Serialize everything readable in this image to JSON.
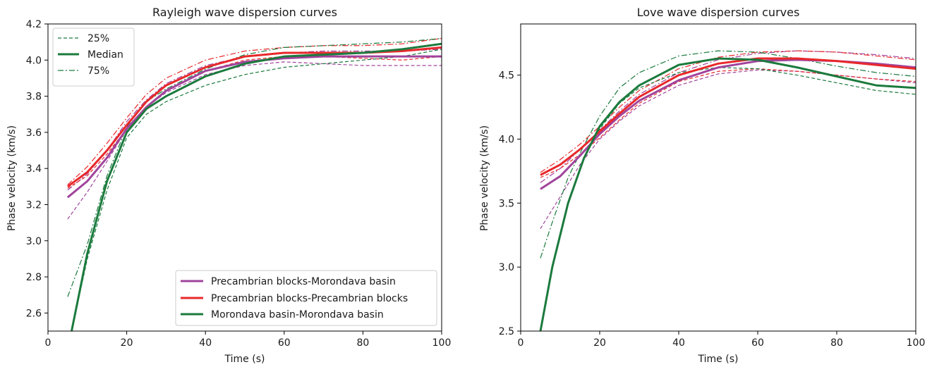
{
  "figure": {
    "style": {
      "colors": {
        "pm": "#a0449c",
        "pp": "#e8282b",
        "mm": "#1b7a3d"
      }
    }
  },
  "chart_data": [
    {
      "type": "line",
      "title": "Rayleigh wave dispersion curves",
      "xlabel": "Time (s)",
      "ylabel": "Phase velocity (km/s)",
      "xlim": [
        0,
        100
      ],
      "ylim": [
        2.5,
        4.2
      ],
      "xticks": [
        0,
        20,
        40,
        60,
        80,
        100
      ],
      "yticks": [
        2.6,
        2.8,
        3.0,
        3.2,
        3.4,
        3.6,
        3.8,
        4.0,
        4.2
      ],
      "ytick_labels": [
        "2.6",
        "2.8",
        "3.0",
        "3.2",
        "3.4",
        "3.6",
        "3.8",
        "4.0",
        "4.2"
      ],
      "grid": false,
      "legend_style": {
        "position": "upper-left",
        "entries": [
          "25%",
          "Median",
          "75%"
        ]
      },
      "legend_group": {
        "position": "lower-right",
        "entries": [
          "Precambrian blocks-Morondava basin",
          "Precambrian blocks-Precambrian blocks",
          "Morondava basin-Morondava basin"
        ]
      },
      "series": [
        {
          "name": "Precambrian blocks-Morondava basin",
          "group": "pm",
          "stat": "median",
          "x": [
            5,
            10,
            15,
            20,
            25,
            30,
            40,
            50,
            60,
            70,
            80,
            90,
            100
          ],
          "y": [
            3.24,
            3.33,
            3.46,
            3.62,
            3.74,
            3.83,
            3.94,
            3.99,
            4.01,
            4.02,
            4.02,
            4.02,
            4.02
          ]
        },
        {
          "name": "Precambrian blocks-Morondava basin",
          "group": "pm",
          "stat": "25%",
          "x": [
            5,
            10,
            15,
            20,
            25,
            30,
            40,
            50,
            60,
            70,
            80,
            90,
            100
          ],
          "y": [
            3.12,
            3.27,
            3.44,
            3.62,
            3.74,
            3.82,
            3.92,
            3.97,
            3.99,
            3.98,
            3.97,
            3.97,
            3.97
          ]
        },
        {
          "name": "Precambrian blocks-Morondava basin",
          "group": "pm",
          "stat": "75%",
          "x": [
            5,
            10,
            15,
            20,
            25,
            30,
            40,
            50,
            60,
            70,
            80,
            90,
            100
          ],
          "y": [
            3.28,
            3.37,
            3.5,
            3.66,
            3.78,
            3.87,
            3.97,
            4.02,
            4.04,
            4.05,
            4.05,
            4.05,
            4.06
          ]
        },
        {
          "name": "Precambrian blocks-Precambrian blocks",
          "group": "pp",
          "stat": "median",
          "x": [
            5,
            10,
            15,
            20,
            25,
            30,
            40,
            50,
            60,
            70,
            80,
            90,
            100
          ],
          "y": [
            3.3,
            3.38,
            3.5,
            3.64,
            3.77,
            3.86,
            3.96,
            4.02,
            4.04,
            4.04,
            4.04,
            4.05,
            4.07
          ]
        },
        {
          "name": "Precambrian blocks-Precambrian blocks",
          "group": "pp",
          "stat": "25%",
          "x": [
            5,
            10,
            15,
            20,
            25,
            30,
            40,
            50,
            60,
            70,
            80,
            90,
            100
          ],
          "y": [
            3.29,
            3.36,
            3.48,
            3.62,
            3.74,
            3.83,
            3.94,
            4.0,
            4.02,
            4.02,
            4.01,
            4.0,
            4.02
          ]
        },
        {
          "name": "Precambrian blocks-Precambrian blocks",
          "group": "pp",
          "stat": "75%",
          "x": [
            5,
            10,
            15,
            20,
            25,
            30,
            40,
            50,
            60,
            70,
            80,
            90,
            100
          ],
          "y": [
            3.31,
            3.41,
            3.54,
            3.68,
            3.81,
            3.9,
            4.0,
            4.05,
            4.07,
            4.08,
            4.08,
            4.09,
            4.12
          ]
        },
        {
          "name": "Morondava basin-Morondava basin",
          "group": "mm",
          "stat": "median",
          "x": [
            6,
            10,
            15,
            20,
            25,
            30,
            40,
            50,
            60,
            70,
            80,
            90,
            100
          ],
          "y": [
            2.5,
            2.93,
            3.33,
            3.6,
            3.73,
            3.8,
            3.91,
            3.98,
            4.02,
            4.03,
            4.04,
            4.06,
            4.09
          ]
        },
        {
          "name": "Morondava basin-Morondava basin",
          "group": "mm",
          "stat": "25%",
          "x": [
            6,
            10,
            15,
            20,
            25,
            30,
            40,
            50,
            60,
            70,
            80,
            90,
            100
          ],
          "y": [
            2.5,
            2.9,
            3.28,
            3.57,
            3.7,
            3.77,
            3.86,
            3.92,
            3.96,
            3.98,
            4.0,
            4.02,
            4.06
          ]
        },
        {
          "name": "Morondava basin-Morondava basin",
          "group": "mm",
          "stat": "75%",
          "x": [
            5,
            10,
            15,
            20,
            25,
            30,
            40,
            50,
            60,
            70,
            80,
            90,
            100
          ],
          "y": [
            2.69,
            2.98,
            3.36,
            3.63,
            3.77,
            3.84,
            3.95,
            4.03,
            4.07,
            4.08,
            4.09,
            4.1,
            4.12
          ]
        }
      ]
    },
    {
      "type": "line",
      "title": "Love wave dispersion curves",
      "xlabel": "Time (s)",
      "ylabel": "Phase velocity (km/s)",
      "xlim": [
        0,
        100
      ],
      "ylim": [
        2.5,
        4.9
      ],
      "xticks": [
        0,
        20,
        40,
        60,
        80,
        100
      ],
      "yticks": [
        2.5,
        3.0,
        3.5,
        4.0,
        4.5
      ],
      "ytick_labels": [
        "2.5",
        "3.0",
        "3.5",
        "4.0",
        "4.5"
      ],
      "grid": false,
      "series": [
        {
          "name": "Precambrian blocks-Morondava basin",
          "group": "pm",
          "stat": "median",
          "x": [
            5,
            10,
            15,
            20,
            25,
            30,
            40,
            50,
            60,
            70,
            80,
            90,
            100
          ],
          "y": [
            3.61,
            3.71,
            3.87,
            4.04,
            4.18,
            4.3,
            4.46,
            4.56,
            4.61,
            4.62,
            4.61,
            4.59,
            4.56
          ]
        },
        {
          "name": "Precambrian blocks-Morondava basin",
          "group": "pm",
          "stat": "25%",
          "x": [
            5,
            10,
            15,
            20,
            25,
            30,
            40,
            50,
            60,
            70,
            80,
            90,
            100
          ],
          "y": [
            3.3,
            3.55,
            3.8,
            4.0,
            4.14,
            4.26,
            4.42,
            4.51,
            4.54,
            4.53,
            4.5,
            4.47,
            4.44
          ]
        },
        {
          "name": "Precambrian blocks-Morondava basin",
          "group": "pm",
          "stat": "75%",
          "x": [
            5,
            10,
            15,
            20,
            25,
            30,
            40,
            50,
            60,
            70,
            80,
            90,
            100
          ],
          "y": [
            3.66,
            3.77,
            3.92,
            4.07,
            4.22,
            4.35,
            4.52,
            4.62,
            4.67,
            4.69,
            4.68,
            4.66,
            4.63
          ]
        },
        {
          "name": "Precambrian blocks-Precambrian blocks",
          "group": "pp",
          "stat": "median",
          "x": [
            5,
            10,
            15,
            20,
            25,
            30,
            40,
            50,
            60,
            70,
            80,
            90,
            100
          ],
          "y": [
            3.72,
            3.8,
            3.92,
            4.06,
            4.2,
            4.33,
            4.5,
            4.59,
            4.63,
            4.63,
            4.61,
            4.58,
            4.55
          ]
        },
        {
          "name": "Precambrian blocks-Precambrian blocks",
          "group": "pp",
          "stat": "25%",
          "x": [
            5,
            10,
            15,
            20,
            25,
            30,
            40,
            50,
            60,
            70,
            80,
            90,
            100
          ],
          "y": [
            3.7,
            3.77,
            3.88,
            4.01,
            4.15,
            4.28,
            4.45,
            4.53,
            4.55,
            4.53,
            4.5,
            4.47,
            4.45
          ]
        },
        {
          "name": "Precambrian blocks-Precambrian blocks",
          "group": "pp",
          "stat": "75%",
          "x": [
            5,
            10,
            15,
            20,
            25,
            30,
            40,
            50,
            60,
            70,
            80,
            90,
            100
          ],
          "y": [
            3.74,
            3.84,
            3.96,
            4.1,
            4.25,
            4.38,
            4.55,
            4.64,
            4.68,
            4.69,
            4.68,
            4.65,
            4.62
          ]
        },
        {
          "name": "Morondava basin-Morondava basin",
          "group": "mm",
          "stat": "median",
          "x": [
            5,
            8,
            12,
            16,
            20,
            25,
            30,
            40,
            50,
            60,
            70,
            80,
            90,
            100
          ],
          "y": [
            2.5,
            3.0,
            3.5,
            3.85,
            4.1,
            4.29,
            4.42,
            4.58,
            4.63,
            4.62,
            4.56,
            4.49,
            4.42,
            4.4
          ]
        },
        {
          "name": "Morondava basin-Morondava basin",
          "group": "mm",
          "stat": "25%",
          "x": [
            5,
            8,
            12,
            16,
            20,
            25,
            30,
            40,
            50,
            60,
            70,
            80,
            90,
            100
          ],
          "y": [
            2.5,
            3.0,
            3.5,
            3.85,
            4.08,
            4.28,
            4.4,
            4.52,
            4.56,
            4.55,
            4.5,
            4.44,
            4.38,
            4.35
          ]
        },
        {
          "name": "Morondava basin-Morondava basin",
          "group": "mm",
          "stat": "75%",
          "x": [
            5,
            8,
            12,
            16,
            20,
            25,
            30,
            40,
            50,
            60,
            70,
            80,
            90,
            100
          ],
          "y": [
            3.07,
            3.35,
            3.7,
            3.95,
            4.18,
            4.4,
            4.52,
            4.65,
            4.69,
            4.68,
            4.63,
            4.57,
            4.52,
            4.49
          ]
        }
      ]
    }
  ]
}
